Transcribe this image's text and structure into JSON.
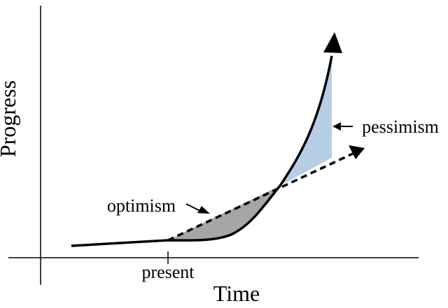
{
  "labels": {
    "y_axis": "Progress",
    "x_axis": "Time",
    "present": "present",
    "optimism": "optimism",
    "pessimism": "pessimism"
  },
  "colors": {
    "background": "#ffffff",
    "stroke": "#000000",
    "optimism_fill": "#a6a6a6",
    "pessimism_fill": "#b7cde4"
  }
}
